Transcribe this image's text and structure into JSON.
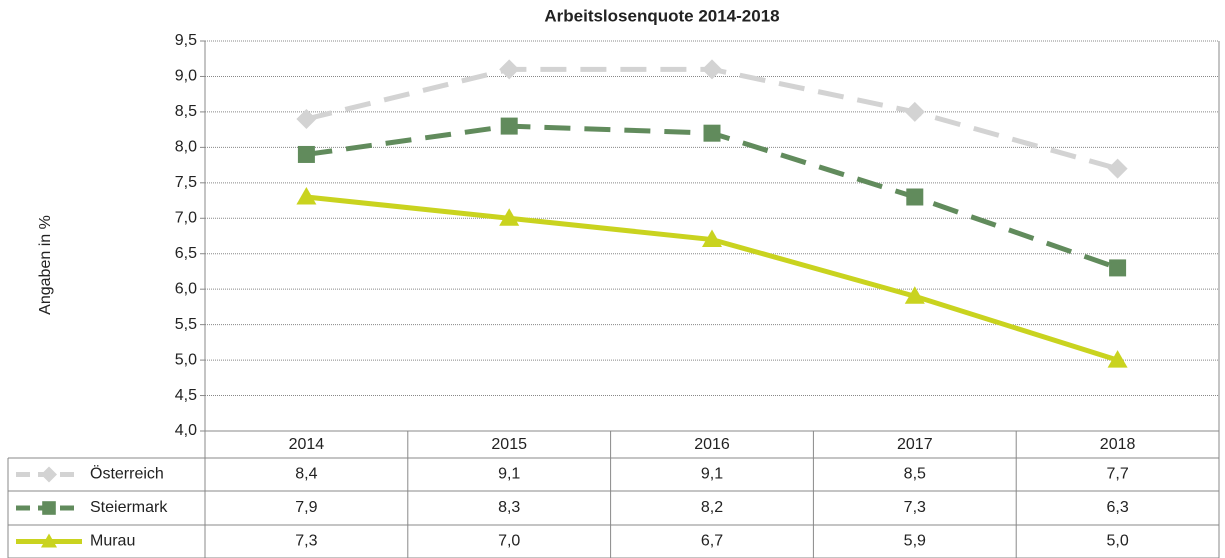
{
  "chart_data": {
    "type": "line",
    "title": "Arbeitslosenquote 2014-2018",
    "y_label": "Angaben in %",
    "categories": [
      "2014",
      "2015",
      "2016",
      "2017",
      "2018"
    ],
    "series": [
      {
        "name": "Österreich",
        "color": "#d3d3d3",
        "dash": true,
        "marker": "diamond",
        "values": [
          8.4,
          9.1,
          9.1,
          8.5,
          7.7
        ],
        "value_labels": [
          "8,4",
          "9,1",
          "9,1",
          "8,5",
          "7,7"
        ]
      },
      {
        "name": "Steiermark",
        "color": "#618b5c",
        "dash": true,
        "marker": "square",
        "values": [
          7.9,
          8.3,
          8.2,
          7.3,
          6.3
        ],
        "value_labels": [
          "7,9",
          "8,3",
          "8,2",
          "7,3",
          "6,3"
        ]
      },
      {
        "name": "Murau",
        "color": "#c9d31f",
        "dash": false,
        "marker": "triangle",
        "values": [
          7.3,
          7.0,
          6.7,
          5.9,
          5.0
        ],
        "value_labels": [
          "7,3",
          "7,0",
          "6,7",
          "5,9",
          "5,0"
        ]
      }
    ],
    "ylim": [
      4.0,
      9.5
    ],
    "yticks": [
      {
        "value": 4.0,
        "label": "4,0"
      },
      {
        "value": 4.5,
        "label": "4,5"
      },
      {
        "value": 5.0,
        "label": "5,0"
      },
      {
        "value": 5.5,
        "label": "5,5"
      },
      {
        "value": 6.0,
        "label": "6,0"
      },
      {
        "value": 6.5,
        "label": "6,5"
      },
      {
        "value": 7.0,
        "label": "7,0"
      },
      {
        "value": 7.5,
        "label": "7,5"
      },
      {
        "value": 8.0,
        "label": "8,0"
      },
      {
        "value": 8.5,
        "label": "8,5"
      },
      {
        "value": 9.0,
        "label": "9,0"
      },
      {
        "value": 9.5,
        "label": "9,5"
      }
    ],
    "grid": true
  }
}
